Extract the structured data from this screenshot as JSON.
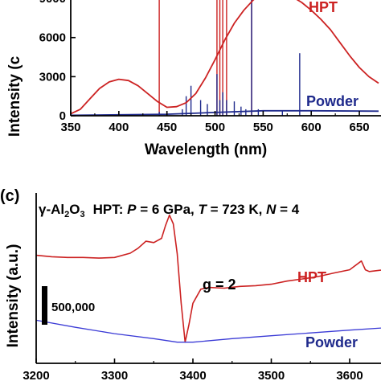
{
  "chart_data": [
    {
      "type": "line",
      "xlabel": "Wavelength (nm)",
      "ylabel": "Intensity (c",
      "xlim": [
        350,
        670
      ],
      "ylim": [
        0,
        9500
      ],
      "x_ticks": [
        "350",
        "400",
        "450",
        "500",
        "550",
        "600",
        "650"
      ],
      "x_tick_values": [
        350,
        400,
        450,
        500,
        550,
        600,
        650
      ],
      "y_ticks": [
        "0",
        "3000",
        "6000"
      ],
      "y_tick_values": [
        0,
        3000,
        6000
      ],
      "top_tick_fragment": "9000",
      "series": [
        {
          "name": "HPT",
          "color": "#cc2222",
          "x": [
            350,
            360,
            370,
            380,
            390,
            400,
            410,
            420,
            430,
            440,
            450,
            460,
            470,
            480,
            490,
            500,
            510,
            520,
            530,
            540,
            550,
            560,
            570,
            580,
            590,
            600,
            610,
            620,
            630,
            640,
            650,
            660,
            670
          ],
          "y": [
            150,
            500,
            1300,
            2100,
            2600,
            2800,
            2700,
            2300,
            1700,
            1100,
            650,
            700,
            1000,
            1700,
            2900,
            4300,
            5800,
            7100,
            8100,
            8900,
            9400,
            9600,
            9500,
            9150,
            8700,
            8100,
            7400,
            6600,
            5600,
            4600,
            3700,
            3000,
            2500
          ]
        },
        {
          "name": "Powder",
          "color": "#1f2a8c",
          "x": [
            350,
            450,
            500,
            550,
            600,
            670
          ],
          "y": [
            40,
            120,
            250,
            380,
            380,
            350
          ]
        }
      ],
      "peaks": [
        {
          "series": "HPT",
          "x": [
            442,
            502,
            505,
            508,
            512,
            538
          ],
          "y": [
            9700,
            9500,
            9600,
            9700,
            9400,
            9650
          ]
        },
        {
          "series": "Powder",
          "x": [
            442,
            466,
            470,
            475,
            485,
            492,
            502,
            505,
            508,
            512,
            520,
            527,
            532,
            538,
            545,
            570,
            588
          ],
          "y": [
            300,
            500,
            1500,
            2300,
            1200,
            900,
            3200,
            1200,
            1800,
            1200,
            1100,
            700,
            500,
            9500,
            500,
            400,
            4800
          ]
        }
      ]
    },
    {
      "type": "line",
      "panel_label": "(c)",
      "xlabel": "",
      "ylabel": "Intensity (a.u.)",
      "xlim": [
        3200,
        3640
      ],
      "ylim": [
        -2000000,
        2600000
      ],
      "x_ticks": [
        "3200",
        "3300",
        "3400",
        "3500",
        "3600"
      ],
      "x_tick_values": [
        3200,
        3300,
        3400,
        3500,
        3600
      ],
      "scale_bar_label": "500,000",
      "scale_bar_value": 500000,
      "annotations": [
        "g = 2"
      ],
      "series": [
        {
          "name": "HPT",
          "color": "#cc2222",
          "x": [
            3200,
            3220,
            3240,
            3260,
            3280,
            3300,
            3320,
            3330,
            3340,
            3350,
            3360,
            3365,
            3370,
            3375,
            3380,
            3385,
            3390,
            3395,
            3400,
            3410,
            3420,
            3440,
            3460,
            3480,
            3500,
            3520,
            3540,
            3560,
            3580,
            3600,
            3615,
            3620,
            3625,
            3640
          ],
          "y": [
            1060000,
            1020000,
            1000000,
            1000000,
            980000,
            1000000,
            1120000,
            1260000,
            1460000,
            1420000,
            1540000,
            1900000,
            2200000,
            1950000,
            1100000,
            -300000,
            -1400000,
            -900000,
            -300000,
            100000,
            150000,
            130000,
            180000,
            200000,
            240000,
            330000,
            390000,
            460000,
            560000,
            650000,
            900000,
            650000,
            600000,
            640000
          ]
        },
        {
          "name": "Powder",
          "color": "#3b3bd6",
          "x": [
            3200,
            3250,
            3300,
            3350,
            3380,
            3400,
            3450,
            3500,
            3550,
            3600,
            3640
          ],
          "y": [
            -780000,
            -980000,
            -1160000,
            -1300000,
            -1400000,
            -1400000,
            -1300000,
            -1220000,
            -1140000,
            -1060000,
            -1000000
          ]
        }
      ]
    }
  ],
  "labels": {
    "top_hpt": "HPT",
    "top_powder": "Powder",
    "c_hpt": "HPT",
    "c_powder": "Powder",
    "g_annotation": "g = 2",
    "bottom_axis_partial": "3200   3300   3400   3500   3600"
  },
  "condition": {
    "phase_gamma": "γ",
    "phase_al": "-Al",
    "sub2": "2",
    "phase_o": "O",
    "sub3": "3",
    "hpt_prefix": "HPT: ",
    "p_symbol": "P",
    "p_value": " = 6 GPa, ",
    "t_symbol": "T",
    "t_value": " = 723 K, ",
    "n_symbol": "N",
    "n_value": " = 4"
  },
  "colors": {
    "hpt": "#cc2222",
    "powder_top": "#1f2a8c",
    "powder_c": "#3b3bd6",
    "axes": "#000000"
  }
}
